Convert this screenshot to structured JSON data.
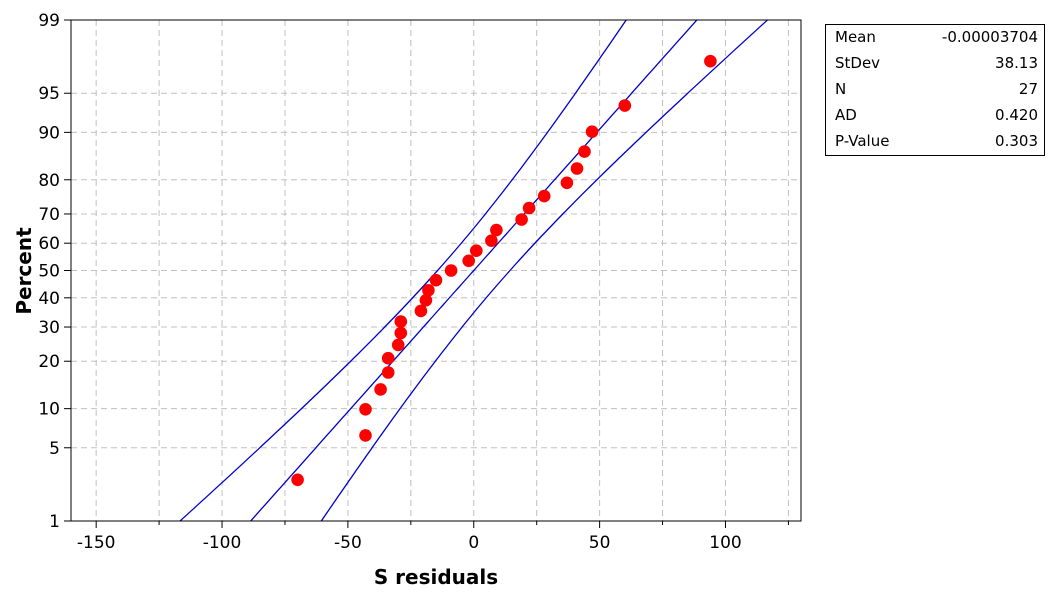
{
  "chart_data": {
    "type": "scatter",
    "title": "",
    "xlabel": "S residuals",
    "ylabel": "Percent",
    "xlim": [
      -160,
      130
    ],
    "ylim_percent": [
      1,
      99
    ],
    "y_scale": "normal-probability",
    "grid": true,
    "x_ticks": [
      -150,
      -100,
      -50,
      0,
      50,
      100
    ],
    "x_minor_grid": [
      -125,
      -75,
      -25,
      25,
      75,
      125
    ],
    "y_ticks": [
      1,
      5,
      10,
      20,
      30,
      40,
      50,
      60,
      70,
      80,
      90,
      95,
      99
    ],
    "points": [
      {
        "x": -70,
        "y": 2.6
      },
      {
        "x": -43,
        "y": 6.3
      },
      {
        "x": -43,
        "y": 9.9
      },
      {
        "x": -37,
        "y": 13.5
      },
      {
        "x": -34,
        "y": 17.2
      },
      {
        "x": -34,
        "y": 20.8
      },
      {
        "x": -30,
        "y": 24.5
      },
      {
        "x": -29,
        "y": 28.1
      },
      {
        "x": -29,
        "y": 31.8
      },
      {
        "x": -21,
        "y": 35.4
      },
      {
        "x": -19,
        "y": 39.1
      },
      {
        "x": -18,
        "y": 42.7
      },
      {
        "x": -15,
        "y": 46.4
      },
      {
        "x": -9,
        "y": 50.0
      },
      {
        "x": -2,
        "y": 53.6
      },
      {
        "x": 1,
        "y": 57.3
      },
      {
        "x": 7,
        "y": 60.9
      },
      {
        "x": 9,
        "y": 64.6
      },
      {
        "x": 19,
        "y": 68.2
      },
      {
        "x": 22,
        "y": 71.9
      },
      {
        "x": 28,
        "y": 75.5
      },
      {
        "x": 37,
        "y": 79.2
      },
      {
        "x": 41,
        "y": 82.8
      },
      {
        "x": 44,
        "y": 86.5
      },
      {
        "x": 47,
        "y": 90.1
      },
      {
        "x": 60,
        "y": 93.7
      },
      {
        "x": 94,
        "y": 97.4
      }
    ],
    "fit_line": {
      "mean": -3.704e-05,
      "stdev": 38.13
    },
    "confidence_band": {
      "level": 0.95,
      "n": 27
    },
    "colors": {
      "points": "#ff0000",
      "lines": "#0000cc",
      "grid": "#c0c0c0"
    }
  },
  "stats": [
    {
      "label": "Mean",
      "value": "-0.00003704"
    },
    {
      "label": "StDev",
      "value": "38.13"
    },
    {
      "label": "N",
      "value": "27"
    },
    {
      "label": "AD",
      "value": "0.420"
    },
    {
      "label": "P-Value",
      "value": "0.303"
    }
  ]
}
